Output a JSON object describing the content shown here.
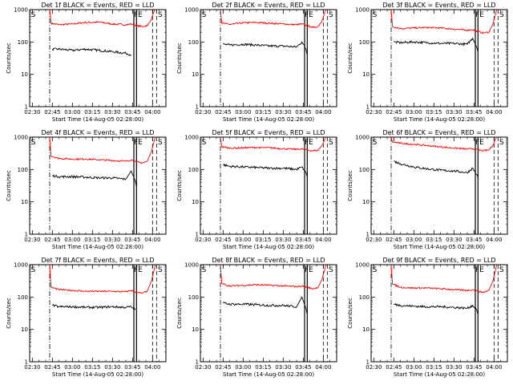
{
  "figure": {
    "xlabel": "Start Time (14-Aug-05 02:28:00)",
    "ylabel": "Counts/sec",
    "y_ticks": [
      "1",
      "10",
      "100",
      "1000"
    ],
    "x_ticks": [
      "02:30",
      "02:45",
      "03:00",
      "03:15",
      "03:30",
      "03:45",
      "04:00"
    ],
    "colors": {
      "events": "#000000",
      "lld": "#ff0000",
      "axes": "#000000"
    }
  },
  "chart_data": [
    {
      "type": "line",
      "title": "Det 1f BLACK = Events, RED = LLD",
      "y_scale": "log",
      "ylim": [
        1,
        1000
      ],
      "xlim": [
        "02:28",
        "04:10"
      ],
      "markers": [
        {
          "text": "S",
          "x": "02:29"
        },
        {
          "text": "FE",
          "x": "03:46"
        },
        {
          "text": "S",
          "x": "04:04"
        }
      ],
      "lines": [
        {
          "x": "02:43",
          "style": "dash-dot"
        },
        {
          "x": "03:46",
          "style": "solid"
        },
        {
          "x": "03:48",
          "style": "solid"
        },
        {
          "x": "04:00",
          "style": "dashed"
        },
        {
          "x": "04:03",
          "style": "dashed"
        }
      ],
      "series": [
        {
          "color": "red",
          "x": [
            "02:43",
            "02:44",
            "02:50",
            "03:00",
            "03:10",
            "03:20",
            "03:30",
            "03:40",
            "03:44",
            "03:48",
            "03:52",
            "03:56",
            "03:59",
            "04:01",
            "04:02"
          ],
          "y": [
            1000,
            380,
            340,
            360,
            400,
            410,
            360,
            340,
            360,
            320,
            300,
            320,
            500,
            850,
            1000
          ]
        },
        {
          "color": "black",
          "x": [
            "02:45",
            "02:50",
            "03:00",
            "03:10",
            "03:20",
            "03:30",
            "03:40",
            "03:44"
          ],
          "y": [
            60,
            60,
            55,
            60,
            55,
            50,
            45,
            40
          ]
        }
      ]
    },
    {
      "type": "line",
      "title": "Det 2f BLACK = Events, RED = LLD",
      "y_scale": "log",
      "ylim": [
        1,
        1000
      ],
      "xlim": [
        "02:28",
        "04:10"
      ],
      "markers": [
        {
          "text": "S",
          "x": "02:29"
        },
        {
          "text": "FE",
          "x": "03:46"
        },
        {
          "text": "S",
          "x": "04:04"
        }
      ],
      "lines": [
        {
          "x": "02:43",
          "style": "dash-dot"
        },
        {
          "x": "03:46",
          "style": "solid"
        },
        {
          "x": "03:48",
          "style": "solid"
        },
        {
          "x": "04:00",
          "style": "dashed"
        },
        {
          "x": "04:03",
          "style": "dashed"
        }
      ],
      "series": [
        {
          "color": "red",
          "x": [
            "02:43",
            "02:44",
            "02:50",
            "03:00",
            "03:10",
            "03:20",
            "03:30",
            "03:40",
            "03:44",
            "03:48",
            "03:52",
            "03:56",
            "03:59",
            "04:01",
            "04:02"
          ],
          "y": [
            1000,
            380,
            350,
            390,
            400,
            380,
            360,
            340,
            360,
            320,
            280,
            300,
            450,
            800,
            1000
          ]
        },
        {
          "color": "black",
          "x": [
            "02:45",
            "02:50",
            "03:00",
            "03:10",
            "03:20",
            "03:30",
            "03:40",
            "03:44",
            "03:47",
            "03:48"
          ],
          "y": [
            85,
            80,
            85,
            80,
            75,
            75,
            70,
            100,
            60,
            40
          ]
        }
      ]
    },
    {
      "type": "line",
      "title": "Det 3f BLACK = Events, RED = LLD",
      "y_scale": "log",
      "ylim": [
        1,
        1000
      ],
      "xlim": [
        "02:28",
        "04:10"
      ],
      "markers": [
        {
          "text": "S",
          "x": "02:29"
        },
        {
          "text": "FE",
          "x": "03:46"
        },
        {
          "text": "S",
          "x": "04:04"
        }
      ],
      "lines": [
        {
          "x": "02:43",
          "style": "dash-dot"
        },
        {
          "x": "03:46",
          "style": "solid"
        },
        {
          "x": "03:48",
          "style": "solid"
        },
        {
          "x": "04:00",
          "style": "dashed"
        },
        {
          "x": "04:03",
          "style": "dashed"
        }
      ],
      "series": [
        {
          "color": "red",
          "x": [
            "02:43",
            "02:44",
            "02:50",
            "03:00",
            "03:10",
            "03:20",
            "03:30",
            "03:40",
            "03:44",
            "03:48",
            "03:52",
            "03:56",
            "03:59",
            "04:01",
            "04:02"
          ],
          "y": [
            1000,
            300,
            260,
            270,
            280,
            270,
            250,
            230,
            240,
            210,
            190,
            200,
            350,
            700,
            1000
          ]
        },
        {
          "color": "black",
          "x": [
            "02:45",
            "02:50",
            "03:00",
            "03:10",
            "03:20",
            "03:30",
            "03:40",
            "03:44",
            "03:47",
            "03:48"
          ],
          "y": [
            100,
            95,
            100,
            95,
            90,
            90,
            85,
            130,
            70,
            50
          ]
        }
      ]
    },
    {
      "type": "line",
      "title": "Det 4f BLACK = Events, RED = LLD",
      "y_scale": "log",
      "ylim": [
        1,
        1000
      ],
      "xlim": [
        "02:28",
        "04:10"
      ],
      "markers": [
        {
          "text": "S",
          "x": "02:29"
        },
        {
          "text": "FE",
          "x": "03:46"
        },
        {
          "text": "S",
          "x": "04:04"
        }
      ],
      "lines": [
        {
          "x": "02:43",
          "style": "dash-dot"
        },
        {
          "x": "03:46",
          "style": "solid"
        },
        {
          "x": "03:48",
          "style": "solid"
        },
        {
          "x": "04:00",
          "style": "dashed"
        },
        {
          "x": "04:03",
          "style": "dashed"
        }
      ],
      "series": [
        {
          "color": "red",
          "x": [
            "02:43",
            "02:44",
            "02:50",
            "03:00",
            "03:10",
            "03:20",
            "03:30",
            "03:40",
            "03:44",
            "03:48",
            "03:52",
            "03:56",
            "03:59",
            "04:01",
            "04:02"
          ],
          "y": [
            1000,
            260,
            220,
            210,
            210,
            200,
            190,
            180,
            200,
            170,
            160,
            180,
            350,
            700,
            1000
          ]
        },
        {
          "color": "black",
          "x": [
            "02:45",
            "02:50",
            "03:00",
            "03:10",
            "03:20",
            "03:30",
            "03:40",
            "03:44",
            "03:47",
            "03:48"
          ],
          "y": [
            65,
            60,
            60,
            58,
            55,
            55,
            50,
            90,
            45,
            30
          ]
        }
      ]
    },
    {
      "type": "line",
      "title": "Det 5f BLACK = Events, RED = LLD",
      "y_scale": "log",
      "ylim": [
        1,
        1000
      ],
      "xlim": [
        "02:28",
        "04:10"
      ],
      "markers": [
        {
          "text": "S",
          "x": "02:29"
        },
        {
          "text": "FE",
          "x": "03:46"
        },
        {
          "text": "S",
          "x": "04:04"
        }
      ],
      "lines": [
        {
          "x": "02:43",
          "style": "dash-dot"
        },
        {
          "x": "03:46",
          "style": "solid"
        },
        {
          "x": "03:48",
          "style": "solid"
        },
        {
          "x": "04:00",
          "style": "dashed"
        },
        {
          "x": "04:03",
          "style": "dashed"
        }
      ],
      "series": [
        {
          "color": "red",
          "x": [
            "02:43",
            "02:44",
            "02:50",
            "03:00",
            "03:10",
            "03:20",
            "03:30",
            "03:40",
            "03:44",
            "03:48",
            "03:52",
            "03:56",
            "03:59",
            "04:01",
            "04:02"
          ],
          "y": [
            1000,
            500,
            460,
            470,
            480,
            470,
            440,
            420,
            430,
            400,
            380,
            390,
            550,
            850,
            1000
          ]
        },
        {
          "color": "black",
          "x": [
            "02:45",
            "02:50",
            "03:00",
            "03:10",
            "03:20",
            "03:30",
            "03:40",
            "03:44",
            "03:47",
            "03:48"
          ],
          "y": [
            140,
            125,
            120,
            115,
            110,
            110,
            100,
            120,
            80,
            60
          ]
        }
      ]
    },
    {
      "type": "line",
      "title": "Det 6f BLACK = Events, RED = LLD",
      "y_scale": "log",
      "ylim": [
        1,
        1000
      ],
      "xlim": [
        "02:28",
        "04:10"
      ],
      "markers": [
        {
          "text": "S",
          "x": "02:29"
        },
        {
          "text": "FE",
          "x": "03:46"
        },
        {
          "text": "S",
          "x": "04:04"
        }
      ],
      "lines": [
        {
          "x": "02:43",
          "style": "dash-dot"
        },
        {
          "x": "03:46",
          "style": "solid"
        },
        {
          "x": "03:48",
          "style": "solid"
        },
        {
          "x": "04:00",
          "style": "dashed"
        },
        {
          "x": "04:03",
          "style": "dashed"
        }
      ],
      "series": [
        {
          "color": "red",
          "x": [
            "02:43",
            "02:44",
            "02:50",
            "03:00",
            "03:10",
            "03:20",
            "03:30",
            "03:40",
            "03:44",
            "03:48",
            "03:52",
            "03:56",
            "03:59",
            "04:01",
            "04:02"
          ],
          "y": [
            1000,
            700,
            650,
            600,
            550,
            500,
            460,
            430,
            440,
            400,
            380,
            400,
            550,
            850,
            1000
          ]
        },
        {
          "color": "black",
          "x": [
            "02:45",
            "02:50",
            "03:00",
            "03:10",
            "03:20",
            "03:30",
            "03:40",
            "03:44",
            "03:47",
            "03:48"
          ],
          "y": [
            180,
            150,
            120,
            105,
            95,
            90,
            80,
            110,
            70,
            55
          ]
        }
      ]
    },
    {
      "type": "line",
      "title": "Det 7f BLACK = Events, RED = LLD",
      "y_scale": "log",
      "ylim": [
        1,
        1000
      ],
      "xlim": [
        "02:28",
        "04:10"
      ],
      "markers": [
        {
          "text": "S",
          "x": "02:29"
        },
        {
          "text": "FE",
          "x": "03:46"
        },
        {
          "text": "S",
          "x": "04:04"
        }
      ],
      "lines": [
        {
          "x": "02:43",
          "style": "dash-dot"
        },
        {
          "x": "03:46",
          "style": "solid"
        },
        {
          "x": "03:48",
          "style": "solid"
        },
        {
          "x": "04:00",
          "style": "dashed"
        },
        {
          "x": "04:03",
          "style": "dashed"
        }
      ],
      "series": [
        {
          "color": "red",
          "x": [
            "02:43",
            "02:44",
            "02:50",
            "03:00",
            "03:10",
            "03:20",
            "03:30",
            "03:40",
            "03:44",
            "03:48",
            "03:52",
            "03:56",
            "03:59",
            "04:01",
            "04:02"
          ],
          "y": [
            1000,
            200,
            170,
            160,
            150,
            150,
            150,
            145,
            160,
            140,
            130,
            150,
            300,
            650,
            1000
          ]
        },
        {
          "color": "black",
          "x": [
            "02:45",
            "02:50",
            "03:00",
            "03:10",
            "03:20",
            "03:30",
            "03:40",
            "03:44",
            "03:47"
          ],
          "y": [
            55,
            50,
            50,
            48,
            48,
            50,
            48,
            50,
            40
          ]
        }
      ]
    },
    {
      "type": "line",
      "title": "Det 8f BLACK = Events, RED = LLD",
      "y_scale": "log",
      "ylim": [
        1,
        1000
      ],
      "xlim": [
        "02:28",
        "04:10"
      ],
      "markers": [
        {
          "text": "S",
          "x": "02:29"
        },
        {
          "text": "FE",
          "x": "03:46"
        },
        {
          "text": "S",
          "x": "04:04"
        }
      ],
      "lines": [
        {
          "x": "02:43",
          "style": "dash-dot"
        },
        {
          "x": "03:46",
          "style": "solid"
        },
        {
          "x": "03:48",
          "style": "solid"
        },
        {
          "x": "04:00",
          "style": "dashed"
        },
        {
          "x": "04:03",
          "style": "dashed"
        }
      ],
      "series": [
        {
          "color": "red",
          "x": [
            "02:43",
            "02:44",
            "02:50",
            "03:00",
            "03:10",
            "03:20",
            "03:30",
            "03:40",
            "03:44",
            "03:48",
            "03:52",
            "03:56",
            "03:59",
            "04:01",
            "04:02"
          ],
          "y": [
            1000,
            260,
            220,
            230,
            240,
            230,
            220,
            210,
            220,
            200,
            180,
            200,
            350,
            700,
            1000
          ]
        },
        {
          "color": "black",
          "x": [
            "02:45",
            "02:50",
            "03:00",
            "03:10",
            "03:20",
            "03:30",
            "03:40",
            "03:44",
            "03:47",
            "03:48"
          ],
          "y": [
            65,
            60,
            60,
            58,
            55,
            55,
            50,
            100,
            45,
            30
          ]
        }
      ]
    },
    {
      "type": "line",
      "title": "Det 9f BLACK = Events, RED = LLD",
      "y_scale": "log",
      "ylim": [
        1,
        1000
      ],
      "xlim": [
        "02:28",
        "04:10"
      ],
      "markers": [
        {
          "text": "S",
          "x": "02:29"
        },
        {
          "text": "FE",
          "x": "03:46"
        },
        {
          "text": "S",
          "x": "04:04"
        }
      ],
      "lines": [
        {
          "x": "02:43",
          "style": "dash-dot"
        },
        {
          "x": "03:46",
          "style": "solid"
        },
        {
          "x": "03:48",
          "style": "solid"
        },
        {
          "x": "04:00",
          "style": "dashed"
        },
        {
          "x": "04:03",
          "style": "dashed"
        }
      ],
      "series": [
        {
          "color": "red",
          "x": [
            "02:43",
            "02:44",
            "02:50",
            "03:00",
            "03:10",
            "03:20",
            "03:30",
            "03:40",
            "03:44",
            "03:48",
            "03:52",
            "03:56",
            "03:59",
            "04:01",
            "04:02"
          ],
          "y": [
            1000,
            250,
            200,
            190,
            190,
            180,
            170,
            160,
            170,
            150,
            140,
            160,
            300,
            650,
            1000
          ]
        },
        {
          "color": "black",
          "x": [
            "02:45",
            "02:50",
            "03:00",
            "03:10",
            "03:20",
            "03:30",
            "03:40",
            "03:44",
            "03:47",
            "03:48"
          ],
          "y": [
            60,
            55,
            52,
            50,
            50,
            48,
            45,
            55,
            40,
            30
          ]
        }
      ]
    }
  ]
}
